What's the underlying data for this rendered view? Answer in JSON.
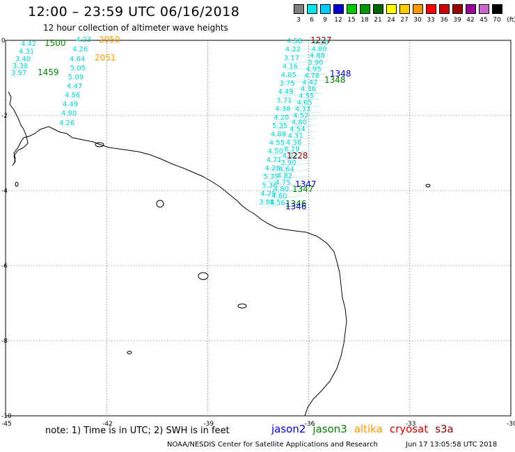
{
  "header": {
    "title": "12:00 – 23:59 UTC 06/16/2018",
    "subtitle": "12 hour collection of altimeter wave heights"
  },
  "legend": {
    "unit": "(ft)",
    "bins": [
      {
        "label": "3",
        "color": "#808080"
      },
      {
        "label": "6",
        "color": "#00e5e5"
      },
      {
        "label": "9",
        "color": "#00ccff"
      },
      {
        "label": "12",
        "color": "#0000cc"
      },
      {
        "label": "15",
        "color": "#00c800"
      },
      {
        "label": "18",
        "color": "#009900"
      },
      {
        "label": "21",
        "color": "#006400"
      },
      {
        "label": "24",
        "color": "#ffff00"
      },
      {
        "label": "27",
        "color": "#ffcc00"
      },
      {
        "label": "30",
        "color": "#ff9900"
      },
      {
        "label": "33",
        "color": "#ff0000"
      },
      {
        "label": "36",
        "color": "#cc0000"
      },
      {
        "label": "39",
        "color": "#990000"
      },
      {
        "label": "42",
        "color": "#990099"
      },
      {
        "label": "45",
        "color": "#cc66cc"
      },
      {
        "label": "70",
        "color": "#000000"
      }
    ]
  },
  "axes": {
    "lon_ticks": [
      "-45",
      "-42",
      "-39",
      "-36",
      "-33",
      "-30"
    ],
    "lat_ticks": [
      "0",
      "-2",
      "-4",
      "-6",
      "-8",
      "-10"
    ]
  },
  "colors": {
    "wave": "#00d2d2",
    "jason2": "#0000cc",
    "jason3": "#008000",
    "altika": "#ff9900",
    "cryosat": "#cc0000",
    "s3a": "#8b0000",
    "coast": "#000000"
  },
  "track_west": {
    "labels": [
      "4.23",
      "4.42",
      "4.31",
      "3.40",
      "3.38",
      "3.97",
      "4.26",
      "4.64",
      "5.05",
      "5.09",
      "4.47",
      "4.56",
      "4.49",
      "4.80",
      "4.26"
    ],
    "times": [
      {
        "text": "1500",
        "sat": "jason3"
      },
      {
        "text": "1459",
        "sat": "jason3"
      },
      {
        "text": "2050",
        "sat": "altika"
      },
      {
        "text": "2051",
        "sat": "altika"
      }
    ]
  },
  "track_east": {
    "labels_west": [
      "4.58",
      "4.22",
      "3.17",
      "4.16",
      "4.05",
      "3.75",
      "4.49",
      "3.71",
      "4.38",
      "4.20",
      "5.35",
      "4.88",
      "4.55",
      "4.50",
      "4.71",
      "4.28",
      "5.39",
      "5.36",
      "4.29",
      "3.88"
    ],
    "labels_east": [
      "4.30",
      "4.80",
      "4.88",
      "3.90",
      "4.95",
      "4.78",
      "4.42",
      "4.36",
      "4.55",
      "4.65",
      "4.33",
      "4.52",
      "4.80",
      "4.54",
      "4.31",
      "4.36",
      "6.19",
      "4.22",
      "3.90",
      "4.64",
      "4.82",
      "4.75",
      "4.80",
      "4.60",
      "4.56"
    ],
    "times": [
      {
        "text": "1227",
        "sat": "s3a"
      },
      {
        "text": "1348",
        "sat": "jason2"
      },
      {
        "text": "1348",
        "sat": "jason3"
      },
      {
        "text": "1228",
        "sat": "s3a"
      },
      {
        "text": "1347",
        "sat": "jason2"
      },
      {
        "text": "1347",
        "sat": "jason3"
      },
      {
        "text": "1346",
        "sat": "jason3"
      },
      {
        "text": "1346",
        "sat": "jason2"
      }
    ]
  },
  "footer": {
    "note": "note:  1) Time is in UTC;  2) SWH is in feet",
    "satellites": [
      {
        "name": "jason2",
        "sat": "jason2"
      },
      {
        "name": "jason3",
        "sat": "jason3"
      },
      {
        "name": "altika",
        "sat": "altika"
      },
      {
        "name": "cryosat",
        "sat": "cryosat"
      },
      {
        "name": "s3a",
        "sat": "s3a"
      }
    ],
    "credit": "NOAA/NESDIS Center for Satellite Applications and Research",
    "date": "Jun 17 13:05:58 UTC 2018"
  }
}
